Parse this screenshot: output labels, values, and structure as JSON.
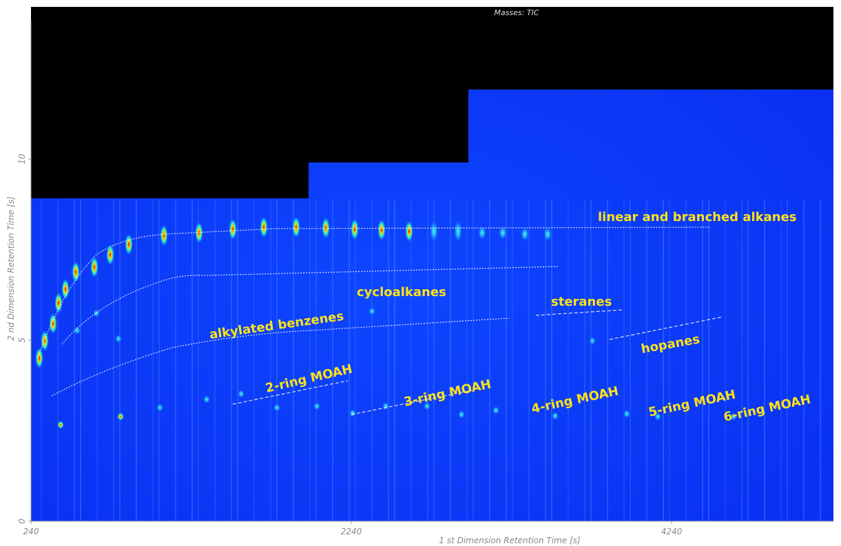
{
  "chart_data": {
    "type": "chromatogram2d",
    "title": "Masses: TIC",
    "x_label": "1 st  Dimension Retention Time [s]",
    "y_label": "2 nd Dimension Retention Time [s]",
    "xlim": [
      240,
      5250
    ],
    "xticks": [
      240,
      2240,
      4240
    ],
    "ylim": [
      0,
      14.2
    ],
    "yticks": [
      0,
      5,
      10
    ],
    "annotations": [
      "linear and branched alkanes",
      "cycloalkanes",
      "steranes",
      "alkylated benzenes",
      "hopanes",
      "2-ring MOAH",
      "3-ring MOAH",
      "4-ring MOAH",
      "5-ring MOAH",
      "6-ring MOAH"
    ]
  }
}
